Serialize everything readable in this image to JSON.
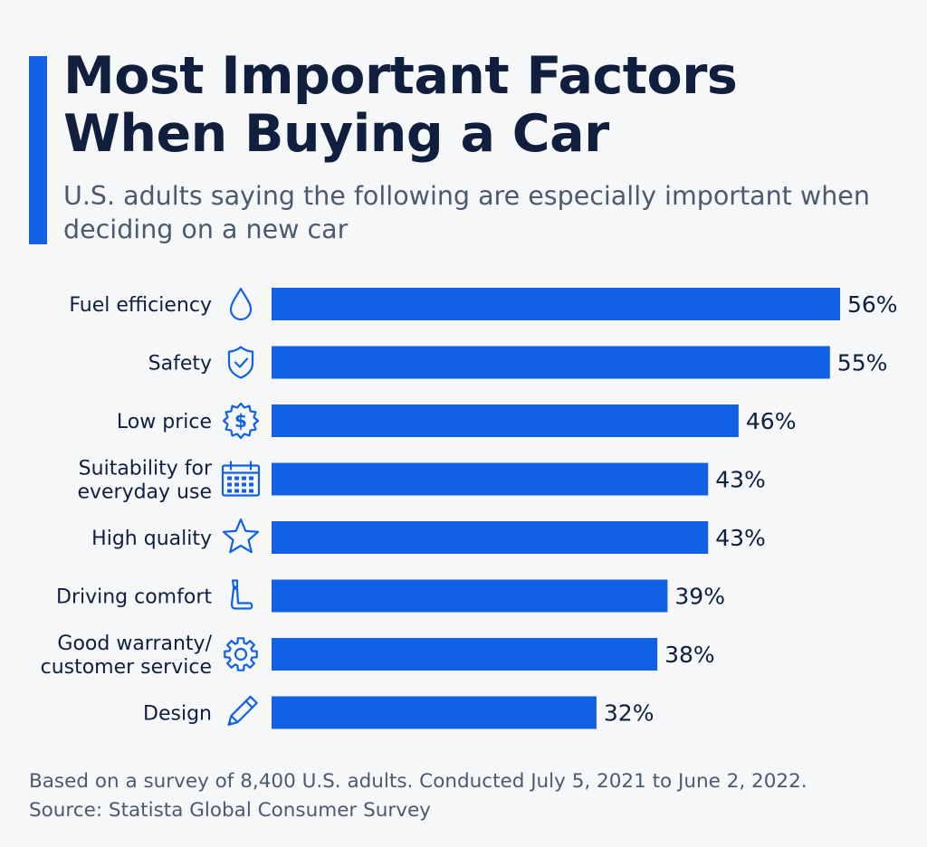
{
  "header": {
    "title": "Most Important Factors When Buying a Car",
    "subtitle": "U.S. adults saying the following are especially important when deciding on a new car"
  },
  "footer": {
    "note": "Based on a survey of 8,400 U.S. adults. Conducted July 5, 2021 to June 2, 2022.",
    "source": "Source: Statista Global Consumer Survey"
  },
  "colors": {
    "bar": "#1061e6",
    "accent": "#1061e6",
    "text": "#0f1f3d",
    "muted": "#4c5a6e",
    "background": "#f6f7f9"
  },
  "chart_data": {
    "type": "bar",
    "orientation": "horizontal",
    "categories": [
      [
        "Fuel efficiency"
      ],
      [
        "Safety"
      ],
      [
        "Low price"
      ],
      [
        "Suitability for",
        "everyday use"
      ],
      [
        "High quality"
      ],
      [
        "Driving comfort"
      ],
      [
        "Good warranty/",
        "customer service"
      ],
      [
        "Design"
      ]
    ],
    "values": [
      56,
      55,
      46,
      43,
      43,
      39,
      38,
      32
    ],
    "value_labels": [
      "56%",
      "55%",
      "46%",
      "43%",
      "43%",
      "39%",
      "38%",
      "32%"
    ],
    "icons": [
      "droplet-icon",
      "shield-check-icon",
      "dollar-badge-icon",
      "calendar-icon",
      "star-icon",
      "car-seat-icon",
      "gear-icon",
      "pencil-icon"
    ],
    "unit": "%",
    "xlim": [
      0,
      56
    ],
    "grid": false,
    "legend": "none"
  }
}
